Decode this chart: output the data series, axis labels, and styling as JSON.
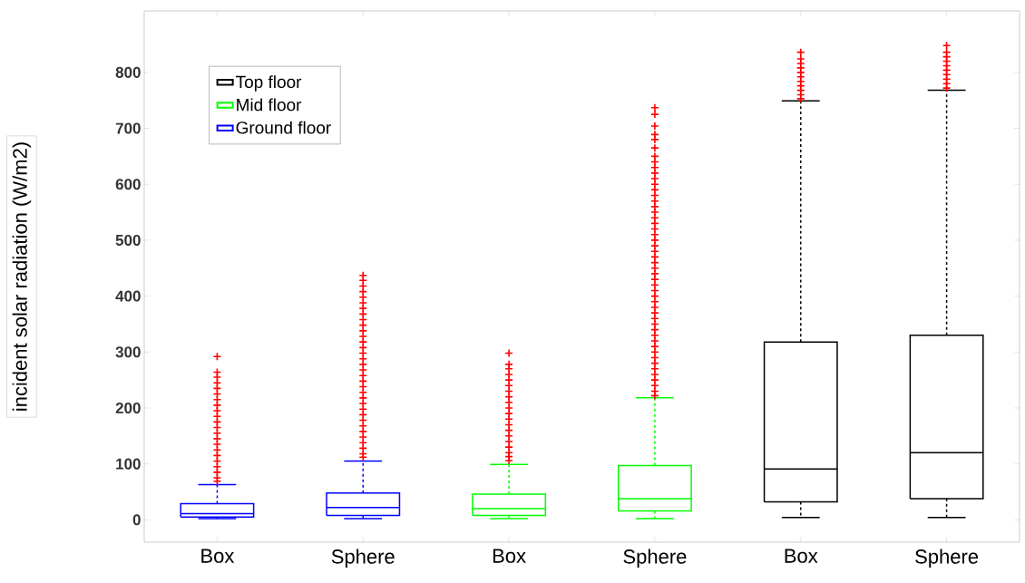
{
  "chart_data": {
    "type": "box",
    "ylabel": "incident solar radiation (W/m2)",
    "categories": [
      "Box",
      "Sphere",
      "Box",
      "Sphere",
      "Box",
      "Sphere"
    ],
    "ylim": [
      -40,
      910
    ],
    "yticks": [
      0,
      100,
      200,
      300,
      400,
      500,
      600,
      700,
      800
    ],
    "legend": "top left",
    "marker": "cross",
    "line_style": "dashed",
    "grid": false,
    "series": [
      {
        "name": "Top floor",
        "color": "#000000",
        "boxes": [
          null,
          null,
          null,
          null,
          {
            "low": 4,
            "q1": 32,
            "median": 91,
            "q3": 318,
            "high": 749,
            "outliers": [
              753,
              760,
              768,
              776,
              784,
              792,
              800,
              808,
              816,
              824,
              836
            ]
          },
          {
            "low": 4,
            "q1": 38,
            "median": 120,
            "q3": 330,
            "high": 768,
            "outliers": [
              772,
              780,
              788,
              796,
              804,
              812,
              820,
              828,
              836,
              848
            ]
          }
        ]
      },
      {
        "name": "Mid floor",
        "color": "#00ff00",
        "boxes": [
          null,
          null,
          {
            "low": 2,
            "q1": 8,
            "median": 20,
            "q3": 46,
            "high": 99,
            "outliers": [
              106,
              113,
              120,
              130,
              140,
              150,
              160,
              170,
              180,
              190,
              200,
              210,
              220,
              230,
              240,
              250,
              260,
              270,
              278,
              298
            ]
          },
          {
            "low": 2,
            "q1": 16,
            "median": 38,
            "q3": 97,
            "high": 218,
            "outliers": [
              222,
              230,
              240,
              250,
              260,
              270,
              280,
              290,
              300,
              310,
              320,
              330,
              340,
              350,
              360,
              370,
              380,
              390,
              400,
              410,
              420,
              430,
              440,
              450,
              460,
              470,
              480,
              490,
              500,
              510,
              520,
              530,
              540,
              550,
              560,
              570,
              580,
              590,
              600,
              610,
              620,
              630,
              640,
              650,
              665,
              680,
              689,
              704,
              725,
              737
            ]
          },
          null,
          null
        ]
      },
      {
        "name": "Ground floor",
        "color": "#0000ff",
        "boxes": [
          {
            "low": 2,
            "q1": 5,
            "median": 11,
            "q3": 29,
            "high": 63,
            "outliers": [
              69,
              75,
              85,
              95,
              105,
              115,
              125,
              135,
              145,
              155,
              165,
              175,
              185,
              195,
              205,
              215,
              225,
              235,
              245,
              255,
              264,
              292
            ]
          },
          {
            "low": 2,
            "q1": 8,
            "median": 22,
            "q3": 48,
            "high": 105,
            "outliers": [
              112,
              118,
              128,
              138,
              148,
              158,
              168,
              178,
              188,
              198,
              208,
              218,
              228,
              238,
              248,
              258,
              268,
              278,
              288,
              298,
              308,
              318,
              328,
              338,
              348,
              358,
              368,
              378,
              388,
              398,
              408,
              418,
              428,
              437
            ]
          },
          null,
          null,
          null,
          null
        ]
      }
    ]
  }
}
